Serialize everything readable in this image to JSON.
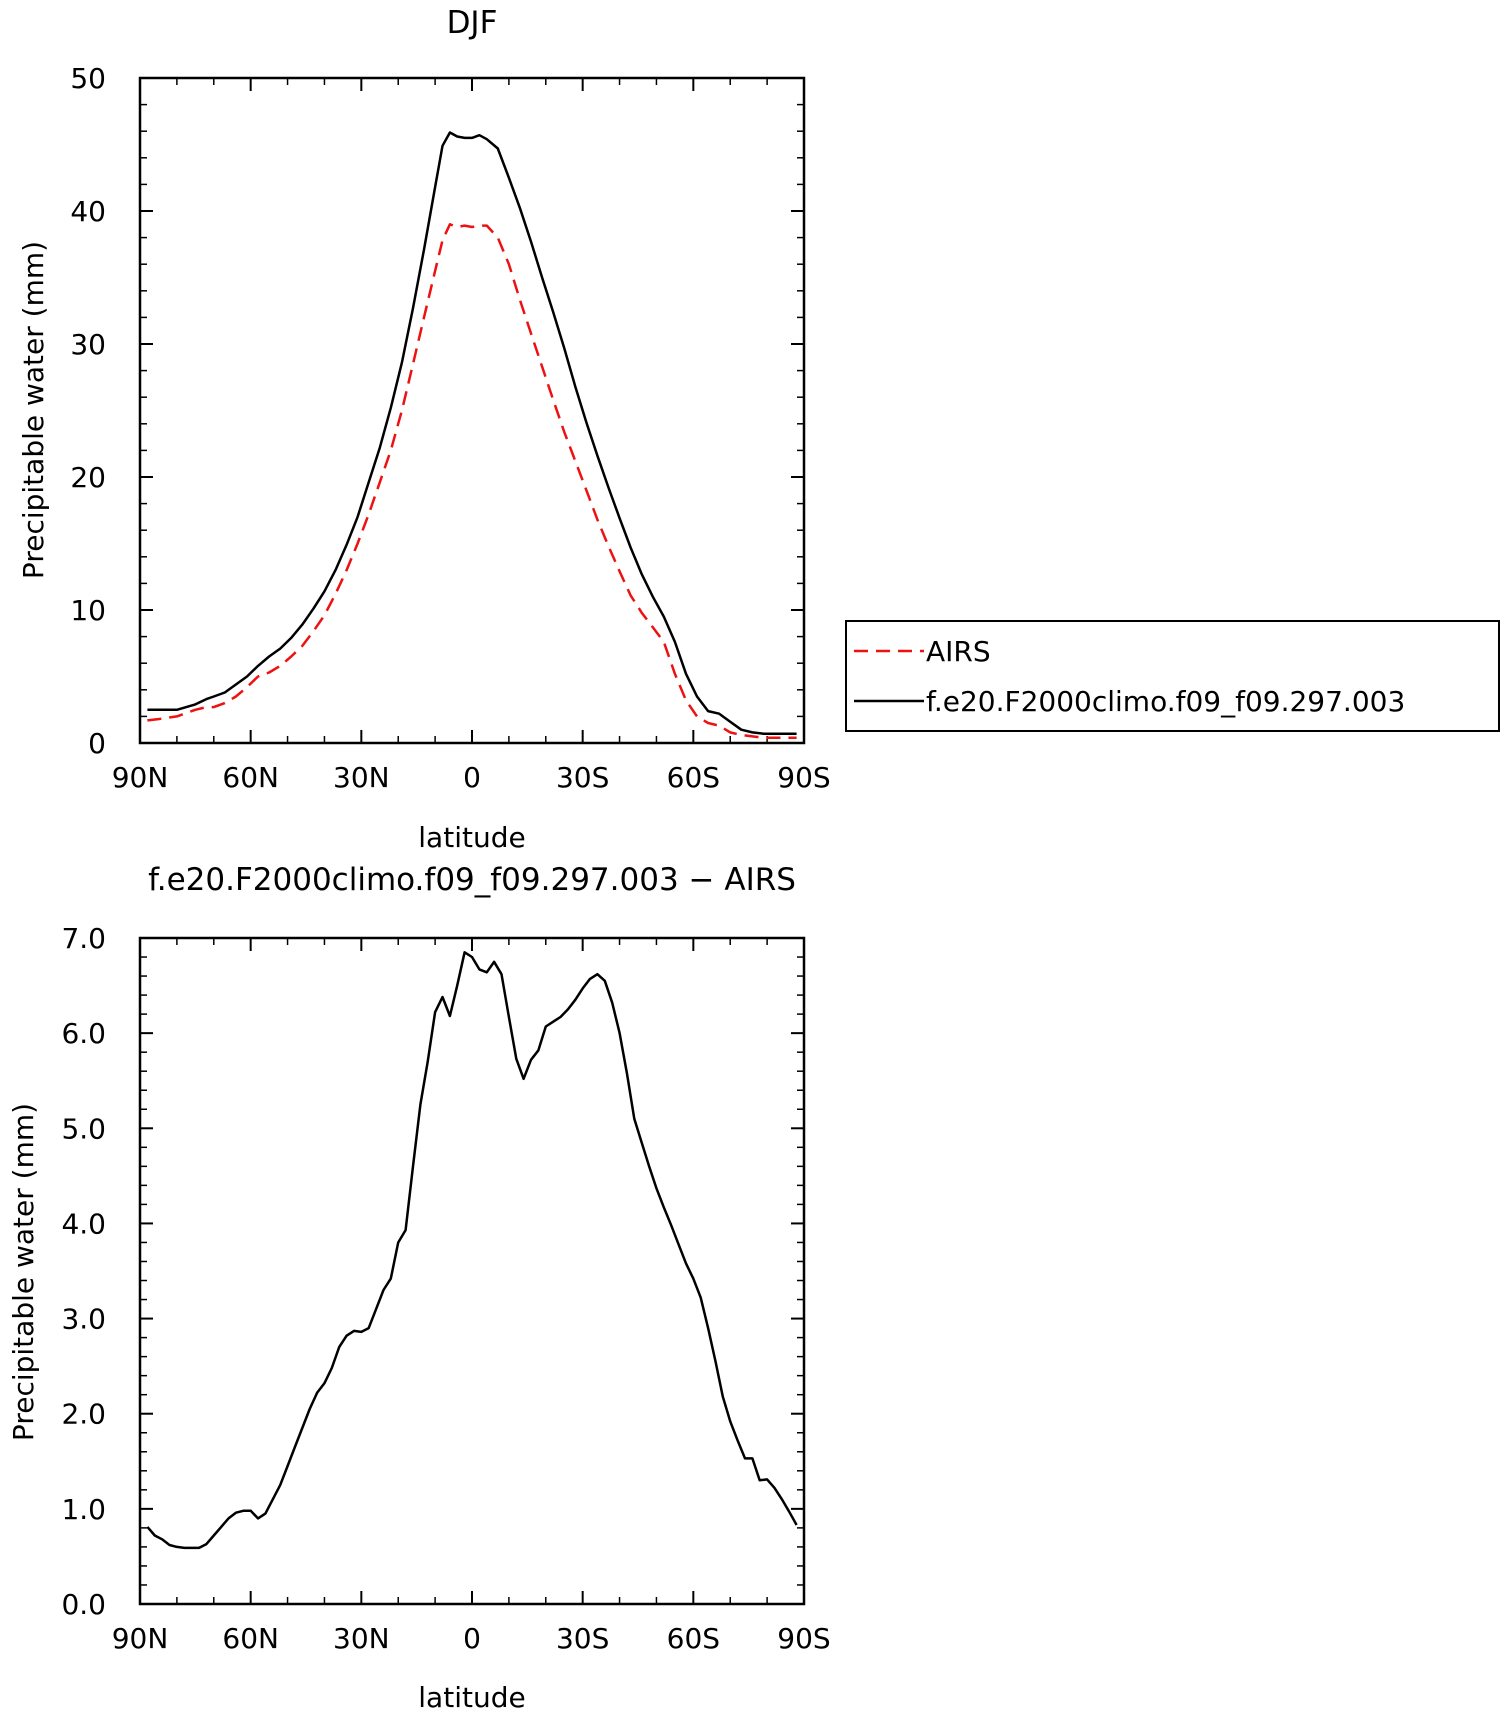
{
  "chart_data": [
    {
      "type": "line",
      "title": "DJF",
      "xlabel": "latitude",
      "ylabel": "Precipitable water (mm)",
      "xlim": [
        90,
        -90
      ],
      "ylim": [
        0,
        50
      ],
      "xticks": [
        90,
        60,
        30,
        0,
        -30,
        -60,
        -90
      ],
      "xticklabels": [
        "90N",
        "60N",
        "30N",
        "0",
        "30S",
        "60S",
        "90S"
      ],
      "yticks": [
        0,
        10,
        20,
        30,
        40,
        50
      ],
      "yticklabels": [
        "0",
        "10",
        "20",
        "30",
        "40",
        "50"
      ],
      "grid": false,
      "legend_position": "right",
      "series": [
        {
          "name": "AIRS",
          "color": "#ee1111",
          "dash": "dashed",
          "x": [
            88,
            85,
            80,
            75,
            72,
            70,
            67,
            64,
            61,
            58,
            55,
            52,
            49,
            46,
            43,
            40,
            37,
            34,
            31,
            28,
            25,
            22,
            19,
            16,
            13,
            10,
            8,
            6,
            4,
            2,
            0,
            -2,
            -4,
            -7,
            -10,
            -13,
            -16,
            -19,
            -22,
            -25,
            -28,
            -31,
            -34,
            -37,
            -40,
            -43,
            -46,
            -49,
            -52,
            -55,
            -58,
            -61,
            -64,
            -67,
            -70,
            -73,
            -76,
            -79,
            -82,
            -85,
            -88
          ],
          "y": [
            1.7,
            1.8,
            2.0,
            2.5,
            2.7,
            2.7,
            3.0,
            3.5,
            4.2,
            5.0,
            5.3,
            5.8,
            6.5,
            7.3,
            8.4,
            9.6,
            11.2,
            13.0,
            15.0,
            17.2,
            19.6,
            22.0,
            25.0,
            28.5,
            32.0,
            35.5,
            37.8,
            39.0,
            38.8,
            38.9,
            38.8,
            38.9,
            38.9,
            38.0,
            36.0,
            33.3,
            30.8,
            28.3,
            25.8,
            23.4,
            21.2,
            19.0,
            16.8,
            14.8,
            12.9,
            11.1,
            9.8,
            8.7,
            7.6,
            5.2,
            3.2,
            2.0,
            1.5,
            1.3,
            0.8,
            0.6,
            0.5,
            0.4,
            0.4,
            0.4,
            0.4
          ]
        },
        {
          "name": "f.e20.F2000climo.f09_f09.297.003",
          "color": "#000000",
          "dash": "solid",
          "x": [
            88,
            85,
            80,
            75,
            72,
            70,
            67,
            64,
            61,
            58,
            55,
            52,
            49,
            46,
            43,
            40,
            37,
            34,
            31,
            28,
            25,
            22,
            19,
            16,
            13,
            10,
            8,
            6,
            4,
            2,
            0,
            -2,
            -4,
            -7,
            -10,
            -13,
            -16,
            -19,
            -22,
            -25,
            -28,
            -31,
            -34,
            -37,
            -40,
            -43,
            -46,
            -49,
            -52,
            -55,
            -58,
            -61,
            -64,
            -67,
            -70,
            -73,
            -76,
            -79,
            -82,
            -85,
            -88
          ],
          "y": [
            2.5,
            2.5,
            2.5,
            2.9,
            3.3,
            3.5,
            3.8,
            4.4,
            5.0,
            5.8,
            6.5,
            7.1,
            7.9,
            8.9,
            10.1,
            11.4,
            13.0,
            14.9,
            17.0,
            19.6,
            22.2,
            25.2,
            28.6,
            32.7,
            37.1,
            41.8,
            44.9,
            45.9,
            45.6,
            45.5,
            45.5,
            45.7,
            45.4,
            44.7,
            42.5,
            40.2,
            37.7,
            35.0,
            32.4,
            29.7,
            26.8,
            24.1,
            21.6,
            19.2,
            16.9,
            14.7,
            12.7,
            11.0,
            9.5,
            7.6,
            5.2,
            3.5,
            2.4,
            2.2,
            1.6,
            1.0,
            0.8,
            0.7,
            0.7,
            0.7,
            0.7
          ]
        }
      ]
    },
    {
      "type": "line",
      "title": "f.e20.F2000climo.f09_f09.297.003 − AIRS",
      "xlabel": "latitude",
      "ylabel": "Precipitable water (mm)",
      "xlim": [
        90,
        -90
      ],
      "ylim": [
        0,
        7
      ],
      "xticks": [
        90,
        60,
        30,
        0,
        -30,
        -60,
        -90
      ],
      "xticklabels": [
        "90N",
        "60N",
        "30N",
        "0",
        "30S",
        "60S",
        "90S"
      ],
      "yticks": [
        0,
        1,
        2,
        3,
        4,
        5,
        6,
        7
      ],
      "yticklabels": [
        "0.0",
        "1.0",
        "2.0",
        "3.0",
        "4.0",
        "5.0",
        "6.0",
        "7.0"
      ],
      "grid": false,
      "series": [
        {
          "color": "#000000",
          "dash": "solid",
          "x": [
            88,
            86,
            84,
            82,
            80,
            78,
            76,
            74,
            72,
            70,
            68,
            66,
            64,
            62,
            60,
            58,
            56,
            54,
            52,
            50,
            48,
            46,
            44,
            42,
            40,
            38,
            36,
            34,
            32,
            30,
            28,
            26,
            24,
            22,
            20,
            18,
            16,
            14,
            12,
            10,
            8,
            6,
            4,
            2,
            0,
            -2,
            -4,
            -6,
            -8,
            -10,
            -12,
            -14,
            -16,
            -18,
            -20,
            -22,
            -24,
            -26,
            -28,
            -30,
            -32,
            -34,
            -36,
            -38,
            -40,
            -42,
            -44,
            -46,
            -48,
            -50,
            -52,
            -54,
            -56,
            -58,
            -60,
            -62,
            -64,
            -66,
            -68,
            -70,
            -72,
            -74,
            -76,
            -78,
            -80,
            -82,
            -84,
            -86,
            -88
          ],
          "y": [
            0.81,
            0.72,
            0.68,
            0.62,
            0.6,
            0.59,
            0.59,
            0.59,
            0.63,
            0.72,
            0.81,
            0.9,
            0.96,
            0.98,
            0.98,
            0.9,
            0.95,
            1.1,
            1.25,
            1.45,
            1.65,
            1.85,
            2.05,
            2.22,
            2.32,
            2.48,
            2.7,
            2.82,
            2.87,
            2.86,
            2.9,
            3.1,
            3.3,
            3.42,
            3.8,
            3.93,
            4.6,
            5.25,
            5.7,
            6.22,
            6.38,
            6.18,
            6.5,
            6.85,
            6.8,
            6.67,
            6.64,
            6.75,
            6.62,
            6.17,
            5.73,
            5.52,
            5.72,
            5.82,
            6.07,
            6.12,
            6.17,
            6.25,
            6.35,
            6.47,
            6.57,
            6.62,
            6.55,
            6.32,
            6.0,
            5.58,
            5.1,
            4.85,
            4.6,
            4.37,
            4.17,
            3.98,
            3.78,
            3.58,
            3.42,
            3.22,
            2.9,
            2.55,
            2.18,
            1.92,
            1.72,
            1.53,
            1.53,
            1.3,
            1.31,
            1.22,
            1.1,
            0.97,
            0.83
          ]
        }
      ]
    }
  ]
}
